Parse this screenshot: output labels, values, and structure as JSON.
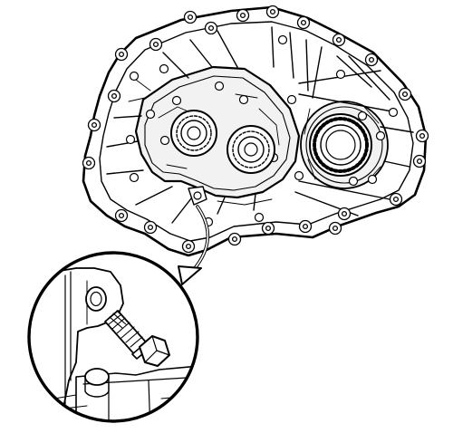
{
  "figure": {
    "subject_icon": "transmission-case-icon",
    "detail_icon": "drain-bolt-magnified-icon",
    "callout_icon": "callout-arrow-icon",
    "line_color": "#000000",
    "fill_color": "#ffffff",
    "case_shade_color": "#f2f2f2"
  }
}
